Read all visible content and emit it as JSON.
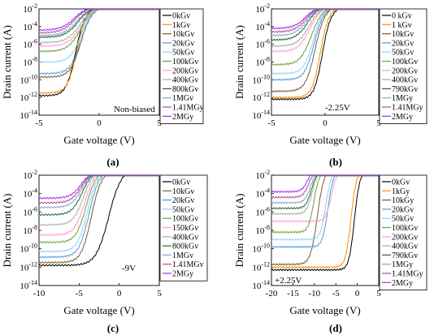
{
  "figure": {
    "ylabel": "Drain current (A)",
    "xlabel": "Gate voltage (V)",
    "yticks": [
      "10",
      "10",
      "10",
      "10",
      "10",
      "10",
      "10"
    ],
    "ytick_exponents": [
      "-2",
      "-4",
      "-6",
      "-8",
      "-10",
      "-12",
      "-14"
    ]
  },
  "chart_data": [
    {
      "type": "line",
      "panel_label": "(a)",
      "annotation": "Non-biased",
      "xlim": [
        -5,
        5
      ],
      "xticks": [
        "-5",
        "0",
        "5"
      ],
      "ylim_log10": [
        -14,
        -2
      ],
      "yscale": "log",
      "legend_position": "right",
      "series": [
        {
          "name": "0kGv",
          "color": "#000000",
          "sub_vt": -2.0,
          "floor": -11.8,
          "steep": 8
        },
        {
          "name": "1kGv",
          "color": "#ff8c00",
          "sub_vt": -1.9,
          "floor": -11.5,
          "steep": 8
        },
        {
          "name": "10kGv",
          "color": "#7b5a2a",
          "sub_vt": -1.6,
          "floor": -9.7,
          "steep": 7
        },
        {
          "name": "20kGv",
          "color": "#4a9ae0",
          "sub_vt": -1.6,
          "floor": -9.3,
          "steep": 7
        },
        {
          "name": "50kGv",
          "color": "#8fd3ef",
          "sub_vt": -1.6,
          "floor": -8.0,
          "steep": 7
        },
        {
          "name": "100kGv",
          "color": "#6e9e3a",
          "sub_vt": -1.7,
          "floor": -6.8,
          "steep": 6
        },
        {
          "name": "200kGv",
          "color": "#ff99cc",
          "sub_vt": -1.7,
          "floor": -6.2,
          "steep": 6
        },
        {
          "name": "400kGv",
          "color": "#aaaaaa",
          "sub_vt": -1.8,
          "floor": -5.8,
          "steep": 6
        },
        {
          "name": "800kGv",
          "color": "#1b6b2e",
          "sub_vt": -2.0,
          "floor": -5.2,
          "steep": 6
        },
        {
          "name": "1MGv",
          "color": "#8da0d6",
          "sub_vt": -2.1,
          "floor": -5.0,
          "steep": 6
        },
        {
          "name": "1.41MGy",
          "color": "#b84a8a",
          "sub_vt": -2.3,
          "floor": -4.7,
          "steep": 6
        },
        {
          "name": "2MGy",
          "color": "#9a2cff",
          "sub_vt": -2.4,
          "floor": -4.4,
          "steep": 6
        }
      ]
    },
    {
      "type": "line",
      "panel_label": "(b)",
      "annotation": "-2.25V",
      "xlim": [
        -5,
        5
      ],
      "xticks": [
        "-5",
        "0",
        "5"
      ],
      "ylim_log10": [
        -14,
        -2
      ],
      "yscale": "log",
      "legend_position": "right",
      "series": [
        {
          "name": "0 kGv",
          "color": "#000000",
          "sub_vt": -0.3,
          "floor": -12.2,
          "steep": 8
        },
        {
          "name": "1 kGv",
          "color": "#ff8c00",
          "sub_vt": -0.5,
          "floor": -12.0,
          "steep": 8
        },
        {
          "name": "10kGv",
          "color": "#7b5a2a",
          "sub_vt": -1.0,
          "floor": -11.3,
          "steep": 7
        },
        {
          "name": "20kGv",
          "color": "#4a9ae0",
          "sub_vt": -1.1,
          "floor": -10.0,
          "steep": 7
        },
        {
          "name": "50kGv",
          "color": "#8fd3ef",
          "sub_vt": -1.2,
          "floor": -9.3,
          "steep": 7
        },
        {
          "name": "100kGv",
          "color": "#6e9e3a",
          "sub_vt": -1.4,
          "floor": -8.3,
          "steep": 6
        },
        {
          "name": "200kGv",
          "color": "#ff99cc",
          "sub_vt": -1.6,
          "floor": -6.8,
          "steep": 6
        },
        {
          "name": "400kGv",
          "color": "#aaaaaa",
          "sub_vt": -1.7,
          "floor": -6.2,
          "steep": 6
        },
        {
          "name": "790kGv",
          "color": "#1b6b2e",
          "sub_vt": -1.9,
          "floor": -5.5,
          "steep": 6
        },
        {
          "name": "1MGy",
          "color": "#8da0d6",
          "sub_vt": -2.0,
          "floor": -5.0,
          "steep": 6
        },
        {
          "name": "1.41MGy",
          "color": "#b84a8a",
          "sub_vt": -2.1,
          "floor": -4.6,
          "steep": 6
        },
        {
          "name": "2MGy",
          "color": "#9a2cff",
          "sub_vt": -2.2,
          "floor": -4.2,
          "steep": 6
        }
      ]
    },
    {
      "type": "line",
      "panel_label": "(c)",
      "annotation": "-9V",
      "xlim": [
        -10,
        5
      ],
      "xticks": [
        "-10",
        "-5",
        "0",
        "5"
      ],
      "ylim_log10": [
        -14,
        -2
      ],
      "yscale": "log",
      "legend_position": "right",
      "series": [
        {
          "name": "0kGv",
          "color": "#000000",
          "sub_vt": -1.5,
          "floor": -11.8,
          "steep": 4
        },
        {
          "name": "10kGv",
          "color": "#7b5a2a",
          "sub_vt": -3.6,
          "floor": -11.5,
          "steep": 5
        },
        {
          "name": "20kGv",
          "color": "#4a9ae0",
          "sub_vt": -3.9,
          "floor": -10.9,
          "steep": 5
        },
        {
          "name": "50kGv",
          "color": "#8fd3ef",
          "sub_vt": -4.1,
          "floor": -10.3,
          "steep": 5
        },
        {
          "name": "100kGv",
          "color": "#6e9e3a",
          "sub_vt": -4.3,
          "floor": -9.3,
          "steep": 5
        },
        {
          "name": "150kGv",
          "color": "#ff99cc",
          "sub_vt": -4.5,
          "floor": -8.5,
          "steep": 5
        },
        {
          "name": "400kGv",
          "color": "#aaaaaa",
          "sub_vt": -4.7,
          "floor": -7.4,
          "steep": 5
        },
        {
          "name": "800kGv",
          "color": "#1b6b2e",
          "sub_vt": -4.9,
          "floor": -6.3,
          "steep": 5
        },
        {
          "name": "1MGv",
          "color": "#8da0d6",
          "sub_vt": -5.0,
          "floor": -5.5,
          "steep": 5
        },
        {
          "name": "1.41MGv",
          "color": "#b84a8a",
          "sub_vt": -5.1,
          "floor": -5.0,
          "steep": 5
        },
        {
          "name": "2MGy",
          "color": "#9a2cff",
          "sub_vt": -5.2,
          "floor": -4.5,
          "steep": 5
        }
      ]
    },
    {
      "type": "line",
      "panel_label": "(d)",
      "annotation": "+2.25V",
      "xlim": [
        -20,
        5
      ],
      "xticks": [
        "-20",
        "-15",
        "-10",
        "-5",
        "0",
        "5"
      ],
      "ylim_log10": [
        -14,
        -2
      ],
      "yscale": "log",
      "legend_position": "right",
      "series": [
        {
          "name": "0kGv",
          "color": "#000000",
          "sub_vt": -0.8,
          "floor": -12.3,
          "steep": 5
        },
        {
          "name": "1kGy",
          "color": "#ff8c00",
          "sub_vt": -1.6,
          "floor": -12.0,
          "steep": 5
        },
        {
          "name": "10kGy",
          "color": "#7b5a2a",
          "sub_vt": -9.5,
          "floor": -11.7,
          "steep": 4
        },
        {
          "name": "20kGv",
          "color": "#4a9ae0",
          "sub_vt": -7.0,
          "floor": -9.8,
          "steep": 5
        },
        {
          "name": "50kGv",
          "color": "#8fd3ef",
          "sub_vt": -7.5,
          "floor": -9.0,
          "steep": 5
        },
        {
          "name": "100kGv",
          "color": "#6e9e3a",
          "sub_vt": -10.3,
          "floor": -8.2,
          "steep": 5
        },
        {
          "name": "200kGv",
          "color": "#ff99cc",
          "sub_vt": -6.3,
          "floor": -7.0,
          "steep": 5
        },
        {
          "name": "400kGv",
          "color": "#aaaaaa",
          "sub_vt": -10.8,
          "floor": -6.2,
          "steep": 5
        },
        {
          "name": "790kGv",
          "color": "#1b6b2e",
          "sub_vt": -11.0,
          "floor": -5.6,
          "steep": 5
        },
        {
          "name": "1MGy",
          "color": "#8da0d6",
          "sub_vt": -11.3,
          "floor": -5.0,
          "steep": 5
        },
        {
          "name": "1.41MGy",
          "color": "#b84a8a",
          "sub_vt": -11.8,
          "floor": -4.4,
          "steep": 5
        },
        {
          "name": "2MGy",
          "color": "#9a2cff",
          "sub_vt": -12.3,
          "floor": -3.8,
          "steep": 5
        }
      ]
    }
  ]
}
